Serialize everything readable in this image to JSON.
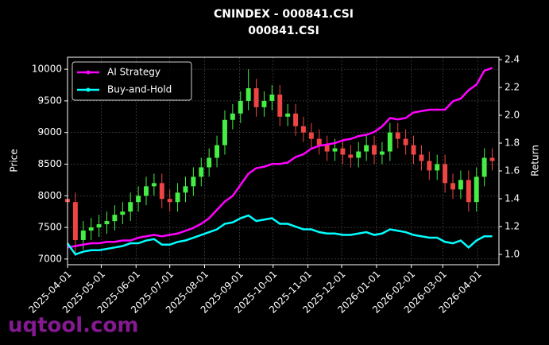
{
  "chart_data": {
    "type": "candlestick",
    "title": "CNINDEX - 000841.CSI",
    "subtitle": "000841.CSI",
    "ylabel": "Price",
    "y2label": "Return",
    "watermark": "uqtool.com",
    "x": [
      "2025-04-01",
      "2025-04-08",
      "2025-04-15",
      "2025-04-22",
      "2025-04-29",
      "2025-05-06",
      "2025-05-13",
      "2025-05-20",
      "2025-05-27",
      "2025-06-03",
      "2025-06-10",
      "2025-06-17",
      "2025-06-24",
      "2025-07-01",
      "2025-07-08",
      "2025-07-15",
      "2025-07-22",
      "2025-07-29",
      "2025-08-05",
      "2025-08-12",
      "2025-08-19",
      "2025-08-26",
      "2025-09-02",
      "2025-09-09",
      "2025-09-16",
      "2025-09-23",
      "2025-09-30",
      "2025-10-07",
      "2025-10-14",
      "2025-10-21",
      "2025-10-28",
      "2025-11-04",
      "2025-11-11",
      "2025-11-18",
      "2025-11-25",
      "2025-12-02",
      "2025-12-09",
      "2025-12-16",
      "2025-12-23",
      "2025-12-30",
      "2026-01-06",
      "2026-01-13",
      "2026-01-20",
      "2026-01-27",
      "2026-02-03",
      "2026-02-10",
      "2026-02-17",
      "2026-02-24",
      "2026-03-03",
      "2026-03-10",
      "2026-03-17",
      "2026-03-24",
      "2026-03-31",
      "2026-04-07",
      "2026-04-14"
    ],
    "open": [
      7950,
      7900,
      7300,
      7450,
      7500,
      7550,
      7600,
      7700,
      7750,
      7900,
      8000,
      8150,
      8200,
      7950,
      7900,
      8050,
      8150,
      8300,
      8450,
      8600,
      8800,
      9200,
      9300,
      9500,
      9700,
      9400,
      9500,
      9600,
      9250,
      9300,
      9100,
      9000,
      8900,
      8800,
      8700,
      8750,
      8650,
      8600,
      8700,
      8800,
      8650,
      8700,
      9000,
      8900,
      8800,
      8650,
      8550,
      8400,
      8500,
      8200,
      8100,
      8250,
      7900,
      8300,
      8600
    ],
    "high": [
      8100,
      8050,
      7600,
      7650,
      7700,
      7750,
      7850,
      7900,
      8050,
      8150,
      8300,
      8350,
      8350,
      8100,
      8200,
      8300,
      8450,
      8600,
      8750,
      8950,
      9350,
      9450,
      9650,
      10000,
      9850,
      9650,
      9750,
      9750,
      9450,
      9450,
      9250,
      9150,
      9050,
      8950,
      8900,
      8900,
      8800,
      8850,
      8950,
      8950,
      8850,
      9150,
      9150,
      9050,
      8950,
      8800,
      8700,
      8650,
      8650,
      8350,
      8400,
      8400,
      8450,
      8750,
      8750
    ],
    "low": [
      7750,
      7050,
      7150,
      7300,
      7350,
      7400,
      7450,
      7550,
      7600,
      7750,
      7850,
      8000,
      7800,
      7750,
      7750,
      7900,
      8000,
      8150,
      8300,
      8450,
      8650,
      9050,
      9150,
      9350,
      9250,
      9250,
      9350,
      9100,
      9100,
      8950,
      8850,
      8750,
      8650,
      8550,
      8550,
      8500,
      8450,
      8450,
      8550,
      8500,
      8500,
      8550,
      8750,
      8650,
      8500,
      8400,
      8250,
      8250,
      8050,
      7950,
      7950,
      7750,
      7750,
      8150,
      8400
    ],
    "close": [
      7900,
      7300,
      7450,
      7500,
      7550,
      7600,
      7700,
      7750,
      7900,
      8000,
      8150,
      8200,
      7950,
      7900,
      8050,
      8150,
      8300,
      8450,
      8600,
      8800,
      9200,
      9300,
      9500,
      9700,
      9400,
      9500,
      9600,
      9250,
      9300,
      9100,
      9000,
      8900,
      8800,
      8700,
      8750,
      8650,
      8600,
      8700,
      8800,
      8650,
      8700,
      9000,
      8900,
      8800,
      8650,
      8550,
      8400,
      8500,
      8200,
      8100,
      8250,
      7900,
      8300,
      8600,
      8550
    ],
    "up_color": "#44ee44",
    "down_color": "#ee4444",
    "series": [
      {
        "name": "AI Strategy",
        "color": "#ff00ff",
        "axis": "y2",
        "values": [
          1.05,
          1.06,
          1.07,
          1.08,
          1.08,
          1.09,
          1.09,
          1.1,
          1.1,
          1.12,
          1.13,
          1.14,
          1.13,
          1.14,
          1.15,
          1.17,
          1.19,
          1.22,
          1.26,
          1.32,
          1.38,
          1.42,
          1.5,
          1.58,
          1.62,
          1.63,
          1.65,
          1.65,
          1.66,
          1.7,
          1.72,
          1.76,
          1.78,
          1.79,
          1.8,
          1.82,
          1.83,
          1.85,
          1.86,
          1.88,
          1.92,
          1.98,
          1.97,
          1.98,
          2.02,
          2.03,
          2.04,
          2.04,
          2.04,
          2.1,
          2.12,
          2.18,
          2.22,
          2.32,
          2.34
        ]
      },
      {
        "name": "Buy-and-Hold",
        "color": "#00ffff",
        "axis": "y2",
        "values": [
          1.08,
          1.0,
          1.02,
          1.03,
          1.03,
          1.04,
          1.05,
          1.06,
          1.08,
          1.08,
          1.1,
          1.11,
          1.07,
          1.07,
          1.09,
          1.1,
          1.12,
          1.14,
          1.16,
          1.18,
          1.22,
          1.23,
          1.26,
          1.28,
          1.24,
          1.25,
          1.26,
          1.22,
          1.22,
          1.2,
          1.18,
          1.18,
          1.16,
          1.15,
          1.15,
          1.14,
          1.14,
          1.15,
          1.16,
          1.14,
          1.15,
          1.18,
          1.17,
          1.16,
          1.14,
          1.13,
          1.12,
          1.12,
          1.09,
          1.08,
          1.1,
          1.05,
          1.1,
          1.13,
          1.13
        ]
      }
    ],
    "xlim": [
      "2025-04-01",
      "2026-04-20"
    ],
    "xticks": [
      "2025-04-01",
      "2025-05-01",
      "2025-06-01",
      "2025-07-01",
      "2025-08-01",
      "2025-09-01",
      "2025-10-01",
      "2025-11-01",
      "2025-12-01",
      "2026-01-01",
      "2026-02-01",
      "2026-03-01",
      "2026-04-01"
    ],
    "ylim": [
      6910,
      10190
    ],
    "yticks": [
      7000,
      7500,
      8000,
      8500,
      9000,
      9500,
      10000
    ],
    "y2lim": [
      0.926,
      2.417
    ],
    "y2ticks": [
      {
        "value": 1.0,
        "label": "1.0"
      },
      1.2,
      1.4,
      1.6,
      1.8,
      {
        "value": 2.0,
        "label": "2.0"
      },
      2.2,
      2.4
    ],
    "grid": true,
    "legend": "upper left"
  }
}
